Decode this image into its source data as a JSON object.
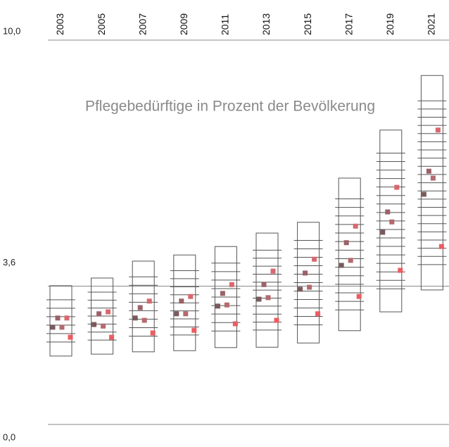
{
  "chart_data": {
    "type": "box-scatter",
    "title": "Pflegebedürftige in Prozent der Bevölkerung",
    "categories": [
      "2003",
      "2005",
      "2007",
      "2009",
      "2011",
      "2013",
      "2015",
      "2017",
      "2019",
      "2021"
    ],
    "ylim": [
      0,
      10
    ],
    "yticks": [
      {
        "value": 10,
        "label": "10,0"
      },
      {
        "value": 3.6,
        "label": "3,6"
      },
      {
        "value": 0,
        "label": "0,0"
      }
    ],
    "boxes": {
      "low": [
        1.78,
        1.83,
        1.89,
        1.92,
        2.0,
        2.01,
        2.12,
        2.44,
        2.93,
        3.5
      ],
      "high": [
        3.61,
        3.81,
        4.25,
        4.41,
        4.63,
        4.98,
        5.26,
        6.41,
        7.66,
        9.08
      ]
    },
    "series": [
      {
        "color": "#7a5a5c",
        "values": [
          2.53,
          2.6,
          2.77,
          2.88,
          3.08,
          3.26,
          3.52,
          4.14,
          5.0,
          5.99
        ]
      },
      {
        "color": "#9c6068",
        "values": [
          2.77,
          2.88,
          3.04,
          3.21,
          3.41,
          3.64,
          3.94,
          4.73,
          5.53,
          6.59
        ]
      },
      {
        "color": "#b46a6e",
        "values": [
          2.53,
          2.56,
          2.71,
          2.88,
          3.11,
          3.3,
          3.57,
          4.27,
          5.27,
          6.41
        ]
      },
      {
        "color": "#d8686e",
        "values": [
          2.77,
          2.93,
          3.21,
          3.33,
          3.64,
          3.99,
          4.3,
          5.16,
          6.17,
          7.66
        ]
      },
      {
        "color": "#ec5c60",
        "values": [
          2.27,
          2.27,
          2.38,
          2.45,
          2.62,
          2.71,
          2.88,
          3.33,
          4.01,
          4.63
        ]
      }
    ]
  }
}
